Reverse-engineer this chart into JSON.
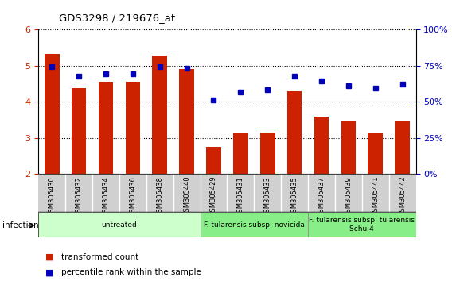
{
  "title": "GDS3298 / 219676_at",
  "samples": [
    "GSM305430",
    "GSM305432",
    "GSM305434",
    "GSM305436",
    "GSM305438",
    "GSM305440",
    "GSM305429",
    "GSM305431",
    "GSM305433",
    "GSM305435",
    "GSM305437",
    "GSM305439",
    "GSM305441",
    "GSM305442"
  ],
  "bar_values": [
    5.32,
    4.38,
    4.55,
    4.55,
    5.27,
    4.9,
    2.75,
    3.12,
    3.15,
    4.3,
    3.6,
    3.47,
    3.12,
    3.48
  ],
  "percentile_values": [
    4.98,
    4.72,
    4.78,
    4.78,
    4.98,
    4.92,
    4.05,
    4.28,
    4.33,
    4.72,
    4.57,
    4.45,
    4.38,
    4.48
  ],
  "bar_color": "#cc2200",
  "percentile_color": "#0000bb",
  "ylim_left": [
    2,
    6
  ],
  "ylim_right": [
    0,
    100
  ],
  "yticks_left": [
    2,
    3,
    4,
    5,
    6
  ],
  "yticks_right": [
    0,
    25,
    50,
    75,
    100
  ],
  "ylabel_left_color": "#cc2200",
  "ylabel_right_color": "#0000bb",
  "group_starts": [
    0,
    6,
    10
  ],
  "group_ends": [
    5,
    9,
    13
  ],
  "group_colors": [
    "#ccffcc",
    "#88ee88",
    "#88ee88"
  ],
  "group_labels": [
    "untreated",
    "F. tularensis subsp. novicida",
    "F. tularensis subsp. tularensis\nSchu 4"
  ],
  "infection_label": "infection",
  "legend_bar_label": "transformed count",
  "legend_percentile_label": "percentile rank within the sample",
  "bar_width": 0.55,
  "sample_bg_color": "#d0d0d0",
  "sample_border_color": "#ffffff"
}
